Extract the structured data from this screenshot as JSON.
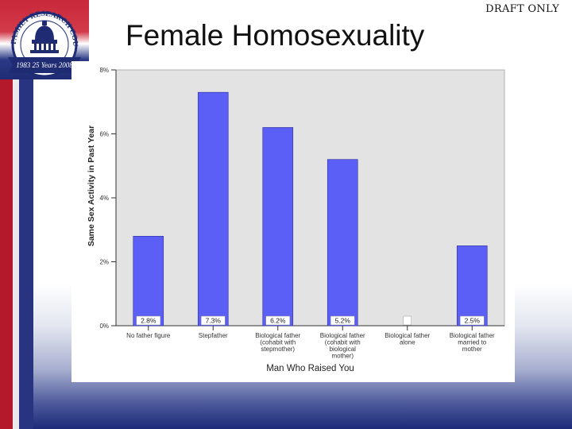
{
  "slide": {
    "draft_label": "DRAFT ONLY",
    "title": "Female Homosexuality",
    "logo": {
      "arc_text": "FAMILY RESEARCH COUNCIL",
      "ribbon_text": "1983 25 Years 2008",
      "colors": {
        "red": "#c8283a",
        "blue": "#1f2c74"
      }
    }
  },
  "chart_data": {
    "type": "bar",
    "title": "",
    "xlabel": "Man Who Raised You",
    "ylabel": "Same Sex Activity in Past Year",
    "ylim": [
      0,
      8
    ],
    "yticks": [
      0,
      2,
      4,
      6,
      8
    ],
    "ytick_labels": [
      "0%",
      "2%",
      "4%",
      "6%",
      "8%"
    ],
    "grid": false,
    "plot_background": "#e3e3e3",
    "bar_color": "#5c5ff5",
    "categories": [
      "No father figure",
      "Stepfather",
      "Biological father (cohabit with stepmother)",
      "Biological father (cohabit with biological mother)",
      "Biological father alone",
      "Biological father married to mother"
    ],
    "category_lines": [
      [
        "No father figure"
      ],
      [
        "Stepfather"
      ],
      [
        "Biological father",
        "(cohabit with",
        "stepmother)"
      ],
      [
        "Biological father",
        "(cohabit with",
        "biological",
        "mother)"
      ],
      [
        "Biological father",
        "alone"
      ],
      [
        "Biological father",
        "married to",
        "mother"
      ]
    ],
    "values": [
      2.8,
      7.3,
      6.2,
      5.2,
      0,
      2.5
    ],
    "value_labels": [
      "2.8%",
      "7.3%",
      "6.2%",
      "5.2%",
      "",
      "2.5%"
    ]
  }
}
